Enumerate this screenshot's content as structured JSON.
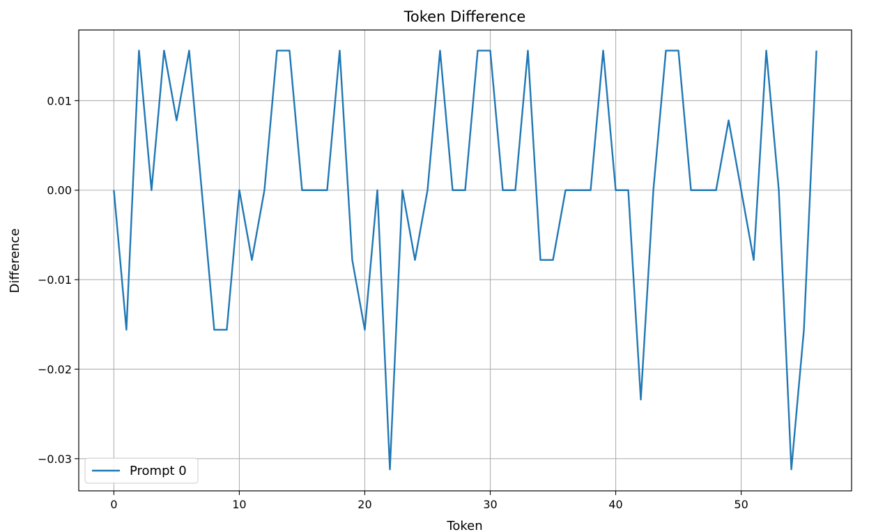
{
  "chart_data": {
    "type": "line",
    "title": "Token Difference",
    "xlabel": "Token",
    "ylabel": "Difference",
    "xlim": [
      -2.8,
      58.8
    ],
    "ylim": [
      -0.0336,
      0.0179
    ],
    "xticks": [
      0,
      10,
      20,
      30,
      40,
      50
    ],
    "xtick_labels": [
      "0",
      "10",
      "20",
      "30",
      "40",
      "50"
    ],
    "yticks": [
      -0.03,
      -0.02,
      -0.01,
      0.0,
      0.01
    ],
    "ytick_labels": [
      "−0.03",
      "−0.02",
      "−0.01",
      "0.00",
      "0.01"
    ],
    "grid": true,
    "legend_position": "lower-left",
    "line_color": "#1f77b4",
    "series": [
      {
        "name": "Prompt 0",
        "x": [
          0,
          1,
          2,
          3,
          4,
          5,
          6,
          7,
          8,
          9,
          10,
          11,
          12,
          13,
          14,
          15,
          16,
          17,
          18,
          19,
          20,
          21,
          22,
          23,
          24,
          25,
          26,
          27,
          28,
          29,
          30,
          31,
          32,
          33,
          34,
          35,
          36,
          37,
          38,
          39,
          40,
          41,
          42,
          43,
          44,
          45,
          46,
          47,
          48,
          49,
          50,
          51,
          52,
          53,
          54,
          55,
          56
        ],
        "values": [
          0,
          -0.0156,
          0.0156,
          0,
          0.0156,
          0.0078,
          0.0156,
          0,
          -0.0156,
          -0.0156,
          0,
          -0.0078,
          0,
          0.0156,
          0.0156,
          0,
          0,
          0,
          0.0156,
          -0.0078,
          -0.0156,
          0,
          -0.0312,
          0,
          -0.0078,
          0,
          0.0156,
          0,
          0,
          0.0156,
          0.0156,
          0,
          0,
          0.0156,
          -0.0078,
          -0.0078,
          0,
          0,
          0,
          0.0156,
          0,
          0,
          -0.0234,
          0,
          0.0156,
          0.0156,
          0,
          0,
          0,
          0.0078,
          0,
          -0.0078,
          0.0156,
          0,
          -0.0312,
          -0.0156,
          0.0156
        ]
      }
    ]
  }
}
